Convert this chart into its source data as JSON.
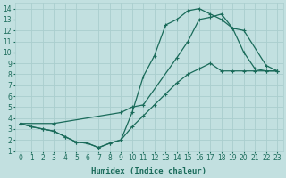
{
  "xlabel": "Humidex (Indice chaleur)",
  "bg_color": "#c2e0e0",
  "grid_color": "#aacece",
  "line_color": "#1a6b5a",
  "xlim": [
    -0.5,
    23.5
  ],
  "ylim": [
    1,
    14.5
  ],
  "xticks": [
    0,
    1,
    2,
    3,
    4,
    5,
    6,
    7,
    8,
    9,
    10,
    11,
    12,
    13,
    14,
    15,
    16,
    17,
    18,
    19,
    20,
    21,
    22,
    23
  ],
  "yticks": [
    1,
    2,
    3,
    4,
    5,
    6,
    7,
    8,
    9,
    10,
    11,
    12,
    13,
    14
  ],
  "line1_x": [
    0,
    1,
    2,
    3,
    4,
    5,
    6,
    7,
    8,
    9,
    10,
    11,
    12,
    13,
    14,
    15,
    16,
    17,
    18,
    19,
    20,
    21,
    22,
    23
  ],
  "line1_y": [
    3.5,
    3.2,
    3.0,
    2.8,
    2.3,
    1.8,
    1.7,
    1.3,
    1.7,
    2.0,
    4.5,
    7.8,
    9.7,
    12.5,
    13.0,
    13.8,
    14.0,
    13.5,
    13.0,
    12.2,
    10.0,
    8.5,
    8.3,
    8.3
  ],
  "line2_x": [
    0,
    3,
    9,
    10,
    11,
    14,
    15,
    16,
    17,
    18,
    19,
    20,
    22,
    23
  ],
  "line2_y": [
    3.5,
    3.5,
    4.5,
    5.0,
    5.2,
    9.5,
    11.0,
    13.0,
    13.2,
    13.5,
    12.2,
    12.0,
    8.8,
    8.3
  ],
  "line3_x": [
    0,
    1,
    2,
    3,
    4,
    5,
    6,
    7,
    8,
    9,
    10,
    11,
    12,
    13,
    14,
    15,
    16,
    17,
    18,
    19,
    20,
    21,
    22,
    23
  ],
  "line3_y": [
    3.5,
    3.2,
    3.0,
    2.8,
    2.3,
    1.8,
    1.7,
    1.3,
    1.7,
    2.0,
    3.2,
    4.2,
    5.2,
    6.2,
    7.2,
    8.0,
    8.5,
    9.0,
    8.3,
    8.3,
    8.3,
    8.3,
    8.3,
    8.3
  ]
}
